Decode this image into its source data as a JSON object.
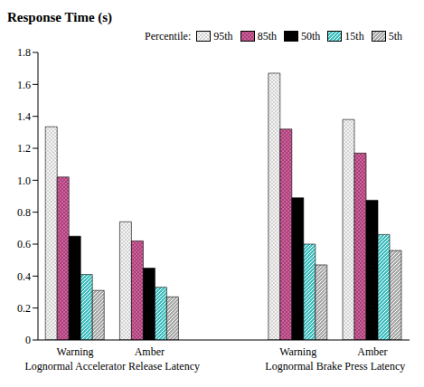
{
  "chart_data": {
    "type": "bar",
    "title": "Response Time (s)",
    "legend_title": "Percentile:",
    "legend": "top",
    "grid": false,
    "categories": [
      "Warning",
      "Amber",
      null,
      "Warning",
      "Amber"
    ],
    "category_groups": [
      "Lognormal Accelerator Release Latency",
      "Lognormal Brake Press Latency"
    ],
    "ylim": [
      0,
      1.8
    ],
    "yticks": [
      0,
      0.2,
      0.4,
      0.6,
      0.8,
      {
        "value": 1,
        "label": "1.0"
      },
      1.2,
      1.4,
      1.6,
      1.8
    ],
    "series": [
      {
        "name": "95th",
        "color": "#f4f4f4",
        "values": [
          1.335,
          0.74,
          null,
          1.67,
          1.38
        ]
      },
      {
        "name": "85th",
        "color": "#b03a7a",
        "values": [
          1.02,
          0.62,
          null,
          1.32,
          1.17
        ]
      },
      {
        "name": "50th",
        "color": "#000000",
        "values": [
          0.65,
          0.45,
          null,
          0.89,
          0.875
        ]
      },
      {
        "name": "15th",
        "color": "#3fbfbf",
        "values": [
          0.41,
          0.33,
          null,
          0.6,
          0.66
        ]
      },
      {
        "name": "5th",
        "color": "#a8a8a8",
        "values": [
          0.31,
          0.27,
          null,
          0.47,
          0.56
        ]
      }
    ]
  }
}
